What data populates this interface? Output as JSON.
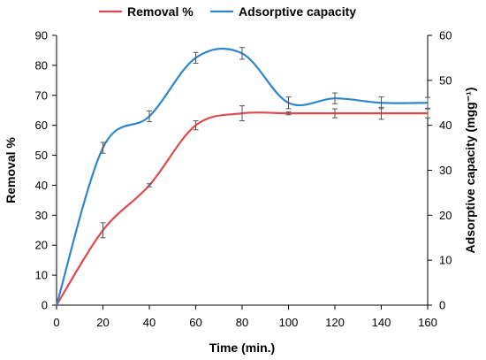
{
  "chart_data": {
    "type": "line",
    "x": [
      0,
      20,
      40,
      60,
      80,
      100,
      120,
      140,
      160
    ],
    "xlabel": "Time (min.)",
    "ylabel": "Removal %",
    "y2label": "Adsorptive capacity (mgg⁻¹)",
    "xlim": [
      0,
      160
    ],
    "ylim": [
      0,
      90
    ],
    "y2lim": [
      0,
      60
    ],
    "xticks": [
      "0",
      "20",
      "40",
      "60",
      "80",
      "100",
      "120",
      "140",
      "160"
    ],
    "yticks": [
      "0",
      "10",
      "20",
      "30",
      "40",
      "50",
      "60",
      "70",
      "80",
      "90"
    ],
    "y2ticks": [
      "0",
      "10",
      "20",
      "30",
      "40",
      "50",
      "60"
    ],
    "grid": false,
    "legend_position": "top",
    "series": [
      {
        "name": "Removal %",
        "axis": "left",
        "color": "#E0494C",
        "values": [
          0,
          25,
          40,
          60,
          64,
          64,
          64,
          64,
          64
        ],
        "errors": [
          0,
          2.5,
          0.5,
          1.5,
          2.5,
          0.5,
          1.5,
          2,
          1.5
        ]
      },
      {
        "name": "Adsorptive capacity",
        "axis": "right",
        "color": "#2F86C9",
        "values": [
          0,
          35,
          42,
          55,
          56,
          45,
          46,
          45,
          45
        ],
        "errors": [
          0,
          1.2,
          1.2,
          1.2,
          1.3,
          1.3,
          1.2,
          1.3,
          1.2
        ]
      }
    ]
  }
}
